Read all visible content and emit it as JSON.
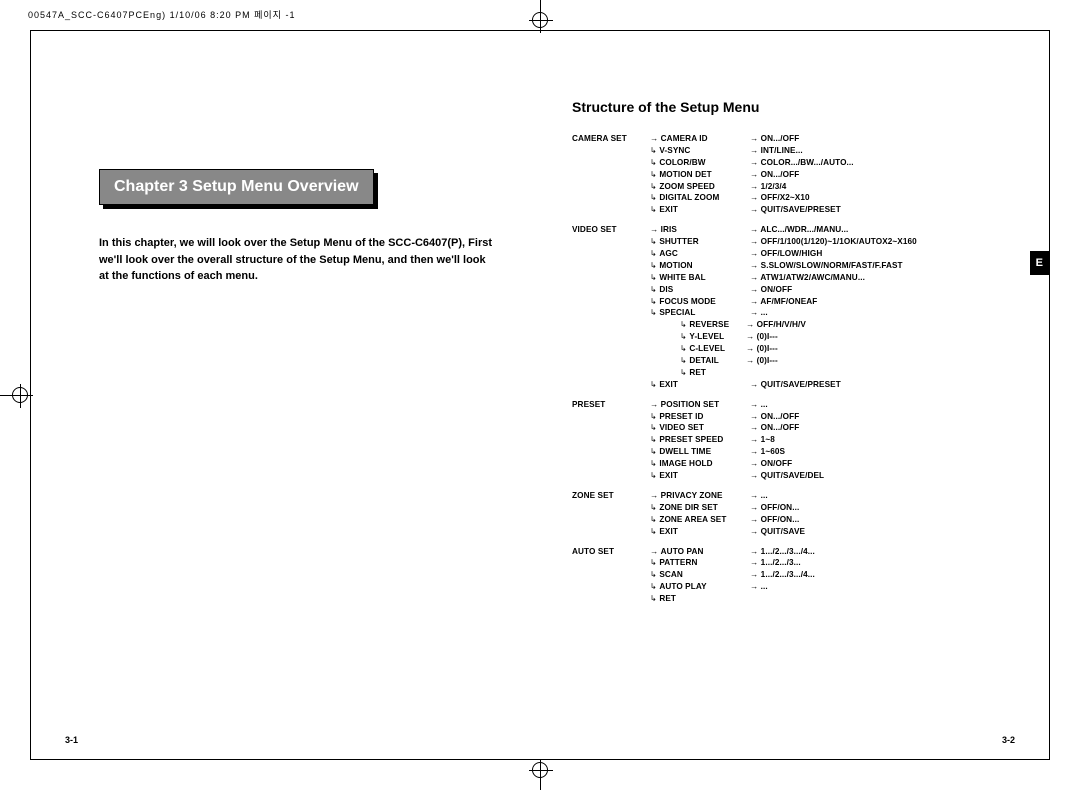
{
  "meta_header": "00547A_SCC-C6407PCEng) 1/10/06 8:20 PM 페이지 -1",
  "left": {
    "chapter_title": "Chapter 3  Setup Menu Overview",
    "intro": "In this chapter, we will look over the Setup Menu of the SCC-C6407(P), First we'll look over the overall structure of the Setup Menu, and then we'll look at the functions of each menu.",
    "page_num": "3-1"
  },
  "right": {
    "structure_title": "Structure of the Setup Menu",
    "e_tab": "E",
    "page_num": "3-2",
    "sections": [
      {
        "col0": "CAMERA SET",
        "items": [
          {
            "k": "CAMERA ID",
            "v": "ON.../OFF"
          },
          {
            "k": "V-SYNC",
            "v": "INT/LINE..."
          },
          {
            "k": "COLOR/BW",
            "v": "COLOR.../BW.../AUTO..."
          },
          {
            "k": "MOTION DET",
            "v": "ON.../OFF"
          },
          {
            "k": "ZOOM SPEED",
            "v": "1/2/3/4"
          },
          {
            "k": "DIGITAL ZOOM",
            "v": "OFF/X2~X10"
          },
          {
            "k": "EXIT",
            "v": "QUIT/SAVE/PRESET"
          }
        ]
      },
      {
        "col0": "VIDEO SET",
        "items": [
          {
            "k": "IRIS",
            "v": "ALC.../WDR.../MANU..."
          },
          {
            "k": "SHUTTER",
            "v": "OFF/1/100(1/120)~1/1OK/AUTOX2~X160"
          },
          {
            "k": "AGC",
            "v": "OFF/LOW/HIGH"
          },
          {
            "k": "MOTION",
            "v": "S.SLOW/SLOW/NORM/FAST/F.FAST"
          },
          {
            "k": "WHITE BAL",
            "v": "ATW1/ATW2/AWC/MANU..."
          },
          {
            "k": "DIS",
            "v": "ON/OFF"
          },
          {
            "k": "FOCUS MODE",
            "v": "AF/MF/ONEAF"
          },
          {
            "k": "SPECIAL",
            "v": "..."
          }
        ],
        "nested": [
          {
            "k": "REVERSE",
            "v": "OFF/H/V/H/V"
          },
          {
            "k": "Y-LEVEL",
            "v": "(0)I---"
          },
          {
            "k": "C-LEVEL",
            "v": "(0)I---"
          },
          {
            "k": "DETAIL",
            "v": "(0)I---"
          },
          {
            "k": "RET",
            "v": ""
          }
        ],
        "tail": [
          {
            "k": "EXIT",
            "v": "QUIT/SAVE/PRESET"
          }
        ]
      },
      {
        "col0": "PRESET",
        "items": [
          {
            "k": "POSITION SET",
            "v": "..."
          },
          {
            "k": "PRESET ID",
            "v": "ON.../OFF"
          },
          {
            "k": "VIDEO SET",
            "v": "ON.../OFF"
          },
          {
            "k": "PRESET SPEED",
            "v": "1~8"
          },
          {
            "k": "DWELL TIME",
            "v": "1~60S"
          },
          {
            "k": "IMAGE HOLD",
            "v": "ON/OFF"
          },
          {
            "k": "EXIT",
            "v": "QUIT/SAVE/DEL"
          }
        ]
      },
      {
        "col0": "ZONE SET",
        "items": [
          {
            "k": "PRIVACY ZONE",
            "v": "..."
          },
          {
            "k": "ZONE DIR SET",
            "v": "OFF/ON..."
          },
          {
            "k": "ZONE AREA SET",
            "v": "OFF/ON..."
          },
          {
            "k": "EXIT",
            "v": "QUIT/SAVE"
          }
        ]
      },
      {
        "col0": "AUTO SET",
        "items": [
          {
            "k": "AUTO PAN",
            "v": "1.../2.../3.../4..."
          },
          {
            "k": "PATTERN",
            "v": "1.../2.../3..."
          },
          {
            "k": "SCAN",
            "v": "1.../2.../3.../4..."
          },
          {
            "k": "AUTO PLAY",
            "v": "..."
          },
          {
            "k": "RET",
            "v": ""
          }
        ]
      }
    ]
  }
}
